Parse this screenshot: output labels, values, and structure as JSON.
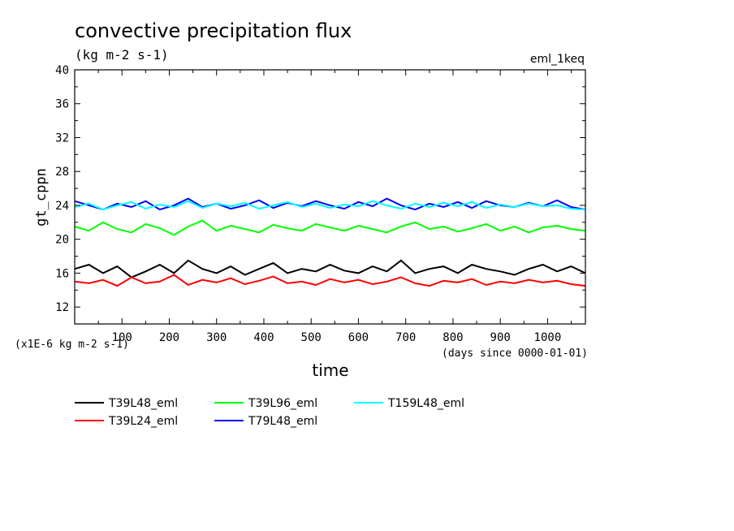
{
  "chart_data": {
    "type": "line",
    "title": "convective precipitation flux",
    "subtitle": "(kg m-2 s-1)",
    "experiment": "eml_1keq",
    "xlabel": "time",
    "xunit": "(days since 0000-01-01)",
    "ylabel": "gt_cppn",
    "yscale_note": "(x1E-6 kg m-2 s-1)",
    "xlim": [
      0,
      1080
    ],
    "ylim": [
      10,
      40
    ],
    "xticks": [
      100,
      200,
      300,
      400,
      500,
      600,
      700,
      800,
      900,
      1000
    ],
    "yticks": [
      12,
      16,
      20,
      24,
      28,
      32,
      36,
      40
    ],
    "x": [
      0,
      30,
      60,
      90,
      120,
      150,
      180,
      210,
      240,
      270,
      300,
      330,
      360,
      390,
      420,
      450,
      480,
      510,
      540,
      570,
      600,
      630,
      660,
      690,
      720,
      750,
      780,
      810,
      840,
      870,
      900,
      930,
      960,
      990,
      1020,
      1050,
      1080
    ],
    "series": [
      {
        "name": "T39L48_eml",
        "color": "#000000",
        "values": [
          16.5,
          17.0,
          16.0,
          16.8,
          15.5,
          16.2,
          17.0,
          16.0,
          17.5,
          16.5,
          16.0,
          16.8,
          15.8,
          16.5,
          17.2,
          16.0,
          16.5,
          16.2,
          17.0,
          16.3,
          16.0,
          16.8,
          16.2,
          17.5,
          16.0,
          16.5,
          16.8,
          16.0,
          17.0,
          16.5,
          16.2,
          15.8,
          16.5,
          17.0,
          16.2,
          16.8,
          16.0
        ]
      },
      {
        "name": "T39L24_eml",
        "color": "#ff0000",
        "values": [
          15.0,
          14.8,
          15.2,
          14.5,
          15.5,
          14.8,
          15.0,
          15.8,
          14.6,
          15.2,
          14.9,
          15.4,
          14.7,
          15.1,
          15.6,
          14.8,
          15.0,
          14.6,
          15.3,
          14.9,
          15.2,
          14.7,
          15.0,
          15.5,
          14.8,
          14.5,
          15.1,
          14.9,
          15.3,
          14.6,
          15.0,
          14.8,
          15.2,
          14.9,
          15.1,
          14.7,
          14.5
        ]
      },
      {
        "name": "T39L96_eml",
        "color": "#00ff00",
        "values": [
          21.5,
          21.0,
          22.0,
          21.2,
          20.8,
          21.8,
          21.3,
          20.5,
          21.5,
          22.2,
          21.0,
          21.6,
          21.2,
          20.8,
          21.7,
          21.3,
          21.0,
          21.8,
          21.4,
          21.0,
          21.6,
          21.2,
          20.8,
          21.5,
          22.0,
          21.2,
          21.5,
          20.9,
          21.3,
          21.8,
          21.0,
          21.5,
          20.8,
          21.4,
          21.6,
          21.2,
          21.0
        ]
      },
      {
        "name": "T79L48_eml",
        "color": "#0000ff",
        "values": [
          24.5,
          24.0,
          23.5,
          24.2,
          23.8,
          24.5,
          23.5,
          24.0,
          24.8,
          23.8,
          24.2,
          23.6,
          24.0,
          24.6,
          23.7,
          24.3,
          23.9,
          24.5,
          24.0,
          23.6,
          24.4,
          23.9,
          24.8,
          24.0,
          23.5,
          24.2,
          23.8,
          24.4,
          23.7,
          24.5,
          24.0,
          23.8,
          24.3,
          23.9,
          24.6,
          23.8,
          23.5
        ]
      },
      {
        "name": "T159L48_eml",
        "color": "#00ffff",
        "values": [
          23.8,
          24.2,
          23.5,
          24.0,
          24.4,
          23.6,
          24.1,
          23.8,
          24.5,
          23.7,
          24.2,
          23.9,
          24.3,
          23.6,
          24.0,
          24.4,
          23.8,
          24.2,
          23.7,
          24.1,
          23.9,
          24.5,
          24.0,
          23.6,
          24.2,
          23.8,
          24.3,
          23.9,
          24.4,
          23.7,
          24.1,
          23.8,
          24.2,
          23.9,
          24.0,
          23.6,
          23.5
        ]
      }
    ],
    "grid": false,
    "legend_position": "bottom-left"
  }
}
